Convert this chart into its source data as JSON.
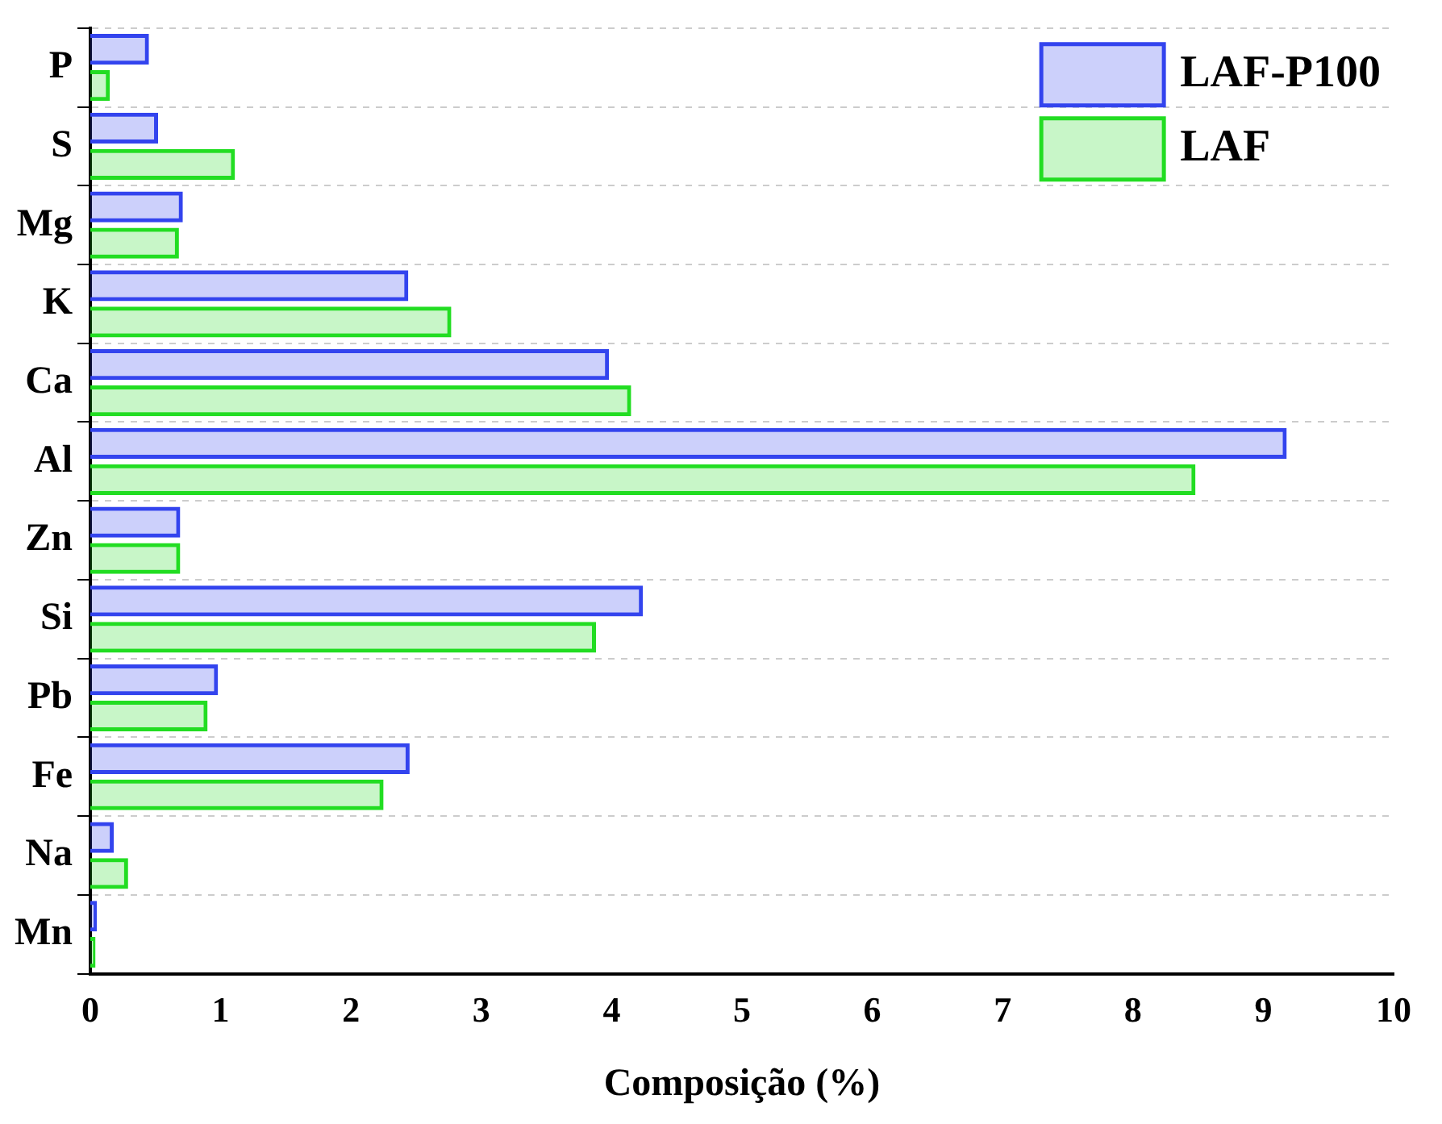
{
  "chart_data": {
    "type": "bar",
    "orientation": "horizontal",
    "xlabel": "Composição (%)",
    "categories": [
      "P",
      "S",
      "Mg",
      "K",
      "Ca",
      "Al",
      "Zn",
      "Si",
      "Pb",
      "Fe",
      "Na",
      "Mn"
    ],
    "series": [
      {
        "name": "LAF-P100",
        "color": "#3344ee",
        "values": [
          0.45,
          0.52,
          0.71,
          2.44,
          3.98,
          9.18,
          0.69,
          4.24,
          0.98,
          2.45,
          0.18,
          0.05
        ]
      },
      {
        "name": "LAF",
        "color": "#22dd22",
        "values": [
          0.15,
          1.11,
          0.68,
          2.77,
          4.15,
          8.48,
          0.69,
          3.88,
          0.9,
          2.25,
          0.29,
          0.04
        ]
      }
    ],
    "xlim": [
      0,
      10
    ],
    "xticks": [
      0,
      1,
      2,
      3,
      4,
      5,
      6,
      7,
      8,
      9,
      10
    ],
    "grid": "y",
    "legend": "top right"
  }
}
